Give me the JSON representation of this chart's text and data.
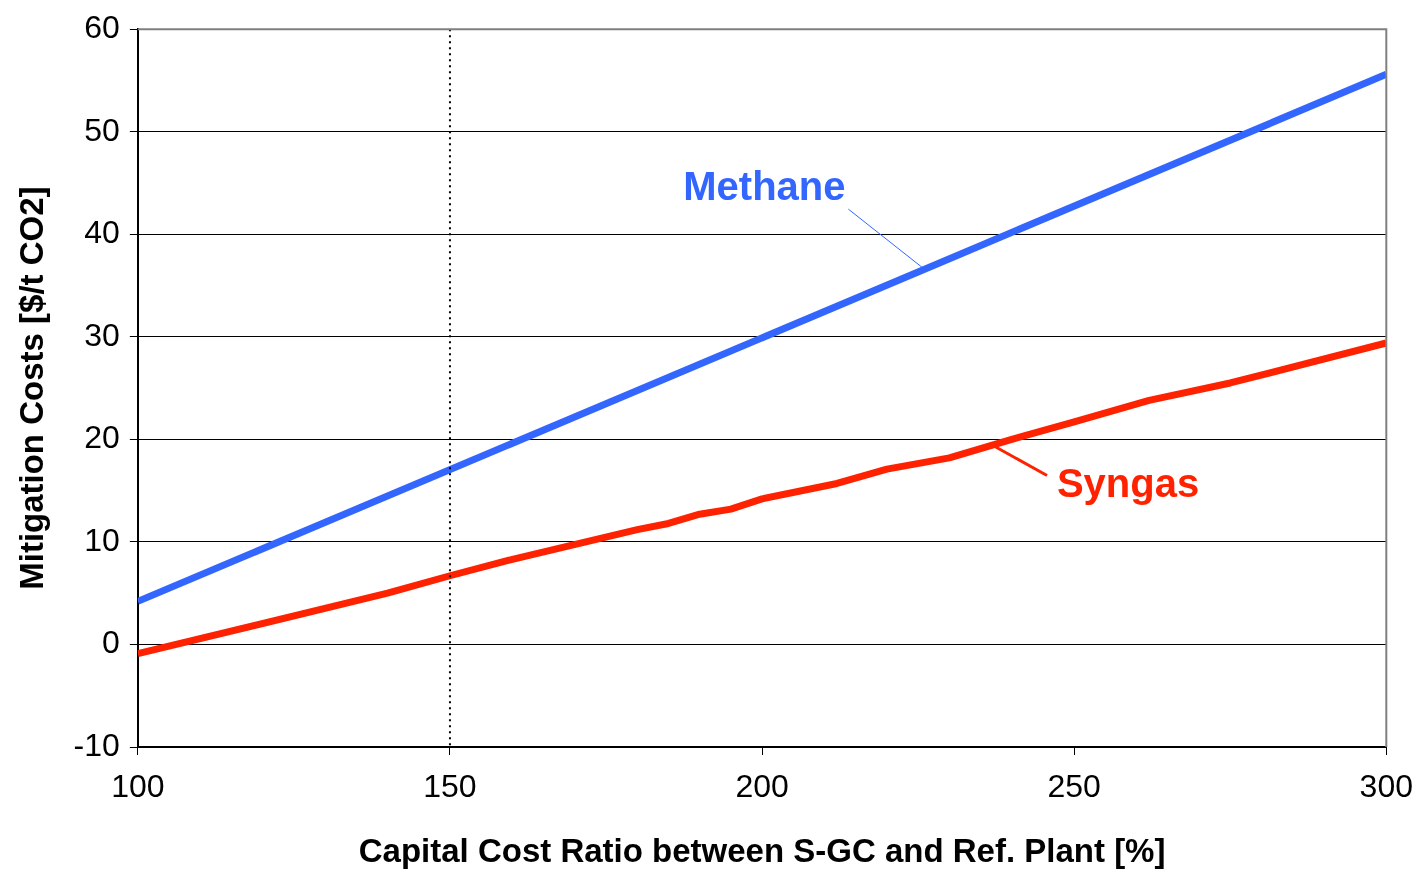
{
  "chart_data": {
    "type": "line",
    "xlabel": "Capital Cost Ratio between S-GC and Ref. Plant [%]",
    "ylabel": "Mitigation Costs [$/t CO2]",
    "xlim": [
      100,
      300
    ],
    "xticks": [
      100,
      150,
      200,
      250,
      300
    ],
    "ylim": [
      -10,
      60
    ],
    "yticks": [
      -10,
      0,
      10,
      20,
      30,
      40,
      50,
      60
    ],
    "grid": "y",
    "legend": false,
    "marker": "none",
    "line_style": "solid",
    "series": [
      {
        "color": "#3366ff",
        "x": [
          100,
          300
        ],
        "values": [
          4.2,
          55.6
        ]
      },
      {
        "color": "#ff2200",
        "x": [
          100,
          140,
          150,
          160,
          180,
          185,
          190,
          195,
          200,
          212,
          220,
          230,
          240,
          250,
          262,
          275,
          300
        ],
        "values": [
          -0.9,
          5.0,
          6.7,
          8.3,
          11.2,
          11.8,
          12.7,
          13.2,
          14.2,
          15.7,
          17.1,
          18.2,
          20.0,
          21.7,
          23.8,
          25.5,
          29.4
        ]
      }
    ],
    "annotations": [
      {
        "text": "Methane",
        "x": 226,
        "y": 36.6
      },
      {
        "text": "Syngas",
        "x": 237,
        "y": 19.4
      }
    ],
    "ref_lines": [
      {
        "axis": "x",
        "value": 150,
        "color": "#000000",
        "line_style": "dotted"
      }
    ]
  }
}
